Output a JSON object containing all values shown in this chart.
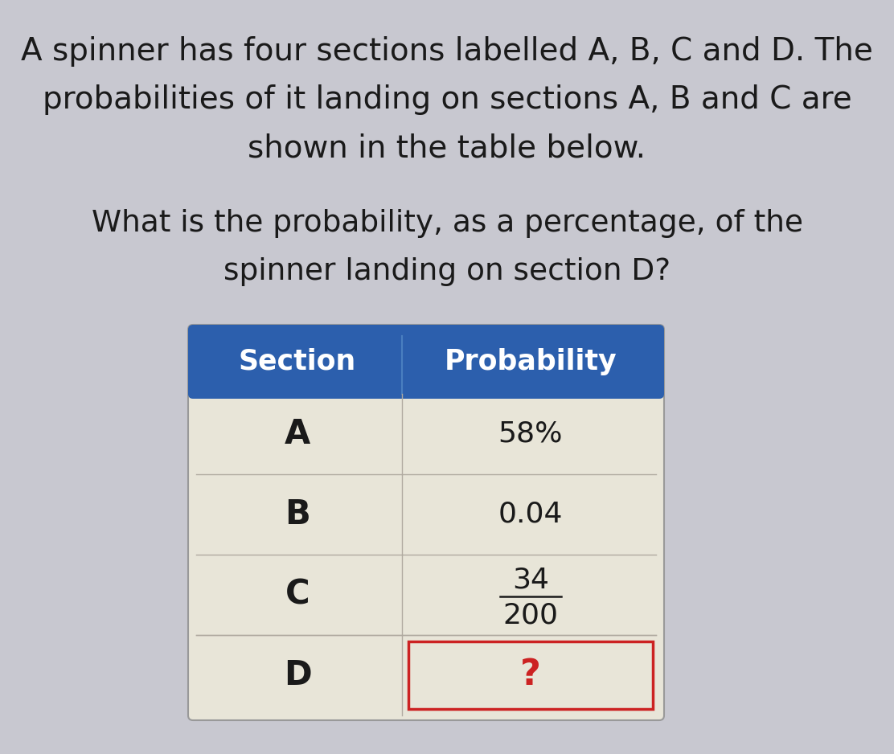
{
  "background_color": "#c8c8d0",
  "title_line1": "A spinner has four sections labelled A, B, C and D. The",
  "title_line2": "probabilities of it landing on sections A, B and C are",
  "title_line3": "shown in the table below.",
  "question_line1": "What is the probability, as a percentage, of the",
  "question_line2": "spinner landing on section D?",
  "header_bg": "#2c5fad",
  "header_text_color": "#ffffff",
  "col1_header": "Section",
  "col2_header": "Probability",
  "rows": [
    {
      "section": "A",
      "prob": "58%",
      "prob_frac": false,
      "highlight": false
    },
    {
      "section": "B",
      "prob": "0.04",
      "prob_frac": false,
      "highlight": false
    },
    {
      "section": "C",
      "prob_frac": true,
      "num": "34",
      "den": "200",
      "highlight": false
    },
    {
      "section": "D",
      "prob": "?",
      "prob_frac": false,
      "highlight": true
    }
  ],
  "row_bg_light": "#e8e5d8",
  "row_bg_dark": "#dddad0",
  "row_text_color": "#1a1a1a",
  "highlight_border": "#cc2222",
  "highlight_text_color": "#cc2222",
  "divider_color": "#b0aaa0",
  "title_fontsize": 28,
  "question_fontsize": 27,
  "cell_fontsize": 26,
  "header_fontsize": 25
}
